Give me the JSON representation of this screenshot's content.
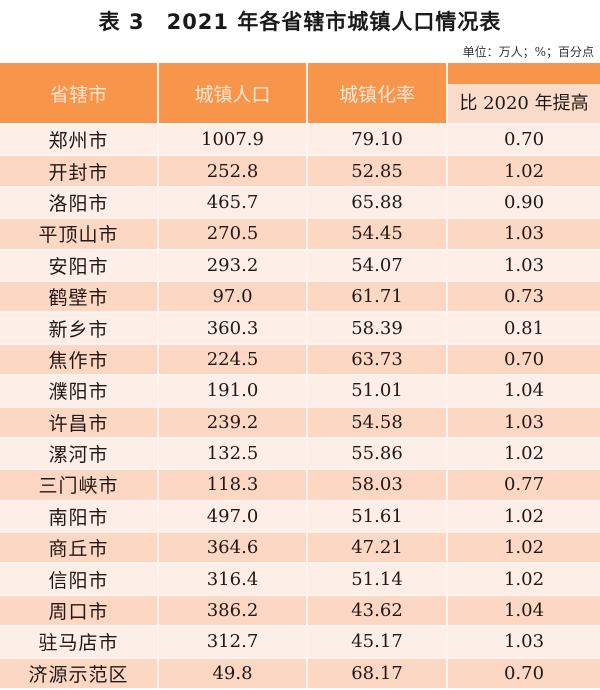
{
  "title": "表 3　2021 年各省辖市城镇人口情况表",
  "unit": "单位：万人；%；百分点",
  "colors": {
    "header_bg": "#f7964a",
    "header_text": "#fde6d6",
    "subheader_bg": "#fbdcca",
    "row_light": "#fdeee8",
    "row_dark": "#fbd7c4"
  },
  "table": {
    "headers": [
      "省辖市",
      "城镇人口",
      "城镇化率",
      "比 2020 年提高"
    ],
    "rows": [
      [
        "郑州市",
        "1007.9",
        "79.10",
        "0.70"
      ],
      [
        "开封市",
        "252.8",
        "52.85",
        "1.02"
      ],
      [
        "洛阳市",
        "465.7",
        "65.88",
        "0.90"
      ],
      [
        "平顶山市",
        "270.5",
        "54.45",
        "1.03"
      ],
      [
        "安阳市",
        "293.2",
        "54.07",
        "1.03"
      ],
      [
        "鹤壁市",
        "97.0",
        "61.71",
        "0.73"
      ],
      [
        "新乡市",
        "360.3",
        "58.39",
        "0.81"
      ],
      [
        "焦作市",
        "224.5",
        "63.73",
        "0.70"
      ],
      [
        "濮阳市",
        "191.0",
        "51.01",
        "1.04"
      ],
      [
        "许昌市",
        "239.2",
        "54.58",
        "1.03"
      ],
      [
        "漯河市",
        "132.5",
        "55.86",
        "1.02"
      ],
      [
        "三门峡市",
        "118.3",
        "58.03",
        "0.77"
      ],
      [
        "南阳市",
        "497.0",
        "51.61",
        "1.02"
      ],
      [
        "商丘市",
        "364.6",
        "47.21",
        "1.02"
      ],
      [
        "信阳市",
        "316.4",
        "51.14",
        "1.02"
      ],
      [
        "周口市",
        "386.2",
        "43.62",
        "1.04"
      ],
      [
        "驻马店市",
        "312.7",
        "45.17",
        "1.03"
      ],
      [
        "济源示范区",
        "49.8",
        "68.17",
        "0.70"
      ]
    ]
  }
}
